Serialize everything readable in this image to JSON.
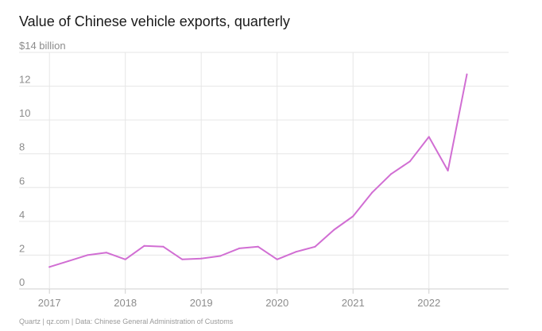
{
  "title": "Value of Chinese vehicle exports, quarterly",
  "source": "Quartz | qz.com | Data: Chinese General Administration of Customs",
  "colors": {
    "line": "#d16ed3",
    "grid": "#e6e6e6",
    "axis": "#cfcfcf",
    "tick": "#8c8c8c"
  },
  "chart_data": {
    "type": "line",
    "title": "Value of Chinese vehicle exports, quarterly",
    "ylabel": "$14 billion",
    "ylim": [
      0,
      14
    ],
    "yticks": [
      0,
      2,
      4,
      6,
      8,
      10,
      12
    ],
    "ytick_labels": [
      "0",
      "2",
      "4",
      "6",
      "8",
      "10",
      "12"
    ],
    "top_tick_label": "$14 billion",
    "xlim": [
      2016.6,
      2023.05
    ],
    "xticks": [
      2017,
      2018,
      2019,
      2020,
      2021,
      2022
    ],
    "xtick_labels": [
      "2017",
      "2018",
      "2019",
      "2020",
      "2021",
      "2022"
    ],
    "grid": true,
    "series": [
      {
        "x": [
          2017.0,
          2017.25,
          2017.5,
          2017.75,
          2018.0,
          2018.25,
          2018.5,
          2018.75,
          2019.0,
          2019.25,
          2019.5,
          2019.75,
          2020.0,
          2020.25,
          2020.5,
          2020.75,
          2021.0,
          2021.25,
          2021.5,
          2021.75,
          2022.0,
          2022.25,
          2022.5
        ],
        "values": [
          1.3,
          1.65,
          2.0,
          2.15,
          1.75,
          2.55,
          2.5,
          1.75,
          1.8,
          1.95,
          2.4,
          2.5,
          1.75,
          2.2,
          2.5,
          3.5,
          4.3,
          5.7,
          6.8,
          7.55,
          9.0,
          7.0,
          12.7
        ]
      }
    ]
  }
}
